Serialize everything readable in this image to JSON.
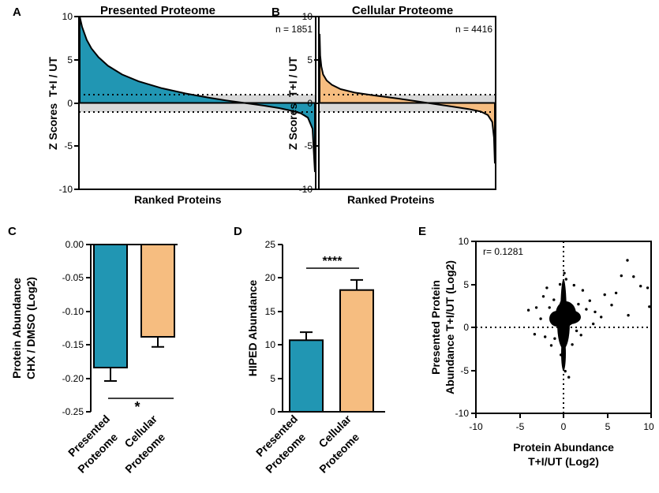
{
  "colors": {
    "teal": "#2196b3",
    "orange": "#f6bd80",
    "gray_band": "#d9d9d9",
    "ink": "#000000"
  },
  "chart_data": [
    {
      "panel": "A",
      "type": "area",
      "title": "Presented Proteome",
      "n_label": "n = 1851",
      "ylabel": "Z Scores  T+I / UT",
      "xlabel": "Ranked Proteins",
      "ylim": [
        -10,
        10
      ],
      "yticks": [
        "10",
        "5",
        "0",
        "-5",
        "-10"
      ],
      "threshold": [
        -1,
        1
      ],
      "curve_x": [
        0,
        0.01,
        0.03,
        0.05,
        0.08,
        0.12,
        0.18,
        0.25,
        0.35,
        0.45,
        0.55,
        0.62,
        0.7,
        0.78,
        0.85,
        0.9,
        0.94,
        0.97,
        0.99,
        1.0
      ],
      "curve_y": [
        10,
        8.8,
        7.3,
        6.3,
        5.3,
        4.3,
        3.3,
        2.5,
        1.7,
        1.1,
        0.6,
        0.3,
        0.0,
        -0.3,
        -0.6,
        -0.9,
        -1.2,
        -1.7,
        -3.0,
        -8.0
      ]
    },
    {
      "panel": "B",
      "type": "area",
      "title": "Cellular Proteome",
      "n_label": "n = 4416",
      "ylabel": "Z Scores  T+I / UT",
      "xlabel": "Ranked Proteins",
      "ylim": [
        -10,
        10
      ],
      "yticks": [
        "10",
        "5",
        "0",
        "-5",
        "-10"
      ],
      "threshold": [
        -1,
        1
      ],
      "curve_x": [
        0,
        0.003,
        0.01,
        0.02,
        0.04,
        0.07,
        0.12,
        0.2,
        0.3,
        0.45,
        0.55,
        0.65,
        0.75,
        0.85,
        0.92,
        0.96,
        0.985,
        0.995,
        1.0
      ],
      "curve_y": [
        8,
        5.5,
        4.2,
        3.3,
        2.6,
        2.1,
        1.6,
        1.2,
        0.9,
        0.5,
        0.2,
        -0.1,
        -0.4,
        -0.7,
        -1.0,
        -1.4,
        -2.2,
        -4.0,
        -7.0
      ]
    },
    {
      "panel": "C",
      "type": "bar",
      "ylabel_line1": "Protein Abundance",
      "ylabel_line2": "CHX / DMSO (Log2)",
      "categories": [
        "Presented Proteome",
        "Cellular Proteome"
      ],
      "category_lines": [
        [
          "Presented",
          "Proteome"
        ],
        [
          "Cellular",
          "Proteome"
        ]
      ],
      "values": [
        -0.184,
        -0.138
      ],
      "errors": [
        0.02,
        0.015
      ],
      "ylim": [
        -0.25,
        0.0
      ],
      "yticks": [
        "0.00",
        "-0.05",
        "-0.10",
        "-0.15",
        "-0.20",
        "-0.25"
      ],
      "significance": "*"
    },
    {
      "panel": "D",
      "type": "bar",
      "ylabel": "HIPED Abundance",
      "categories": [
        "Presented Proteome",
        "Cellular Proteome"
      ],
      "category_lines": [
        [
          "Presented",
          "Proteome"
        ],
        [
          "Cellular",
          "Proteome"
        ]
      ],
      "values": [
        10.7,
        18.2
      ],
      "errors": [
        1.2,
        1.5
      ],
      "ylim": [
        0,
        25
      ],
      "yticks": [
        "25",
        "20",
        "15",
        "10",
        "5",
        "0"
      ],
      "significance": "****"
    },
    {
      "panel": "E",
      "type": "scatter",
      "annotation": "r= 0.1281",
      "ylabel_line1": "Presented Protein",
      "ylabel_line2": "Abundance T+I/UT (Log2)",
      "xlabel_line1": "Protein Abundance",
      "xlabel_line2": "T+I/UT (Log2)",
      "xlim": [
        -10,
        10
      ],
      "ylim": [
        -10,
        10
      ],
      "xticks": [
        "-10",
        "-5",
        "0",
        "5",
        "10"
      ],
      "yticks": [
        "10",
        "5",
        "0",
        "-5",
        "-10"
      ],
      "points": [
        [
          7.3,
          7.8
        ],
        [
          8.0,
          5.9
        ],
        [
          6.6,
          6.0
        ],
        [
          8.8,
          4.8
        ],
        [
          9.6,
          4.6
        ],
        [
          6.0,
          4.0
        ],
        [
          9.8,
          2.4
        ],
        [
          7.4,
          1.4
        ],
        [
          5.5,
          2.6
        ],
        [
          4.7,
          3.8
        ],
        [
          4.3,
          1.2
        ],
        [
          3.6,
          1.8
        ],
        [
          3.0,
          3.1
        ],
        [
          2.6,
          2.1
        ],
        [
          2.2,
          4.3
        ],
        [
          3.4,
          0.4
        ],
        [
          1.7,
          2.7
        ],
        [
          -2.3,
          3.6
        ],
        [
          -3.1,
          2.3
        ],
        [
          -4.0,
          2.0
        ],
        [
          -2.6,
          1.0
        ],
        [
          -1.9,
          4.6
        ],
        [
          -1.6,
          2.3
        ],
        [
          -2.1,
          -1.1
        ],
        [
          -3.3,
          -0.8
        ],
        [
          -1.4,
          -2.1
        ],
        [
          -1.1,
          3.2
        ],
        [
          0.2,
          -5.1
        ],
        [
          0.6,
          -5.8
        ],
        [
          -0.3,
          -3.2
        ],
        [
          1.0,
          -2.0
        ],
        [
          2.0,
          -0.9
        ],
        [
          0.1,
          6.3
        ],
        [
          0.3,
          5.6
        ],
        [
          -0.4,
          5.0
        ],
        [
          1.2,
          4.9
        ],
        [
          -0.8,
          0.3
        ],
        [
          1.5,
          -0.4
        ],
        [
          -1.0,
          -1.3
        ]
      ]
    }
  ]
}
